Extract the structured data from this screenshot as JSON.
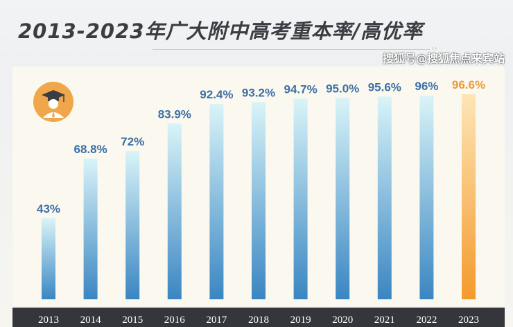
{
  "watermark": "搜狐号@搜狐焦点来宾站",
  "colors": {
    "bar_top": "#d6f3f8",
    "bar_bottom": "#3a86c2",
    "highlight_top": "#fde3b0",
    "highlight_bottom": "#f39a2c",
    "label": "#3c6fa6",
    "highlight_label": "#e99a3c"
  },
  "chart_data": {
    "type": "bar",
    "title": "2013-2023年广大附中高考重本率/高优率",
    "categories": [
      "2013",
      "2014",
      "2015",
      "2016",
      "2017",
      "2018",
      "2019",
      "2020",
      "2021",
      "2022",
      "2023"
    ],
    "values": [
      43,
      68.8,
      72,
      83.9,
      92.4,
      93.2,
      94.7,
      95.0,
      95.6,
      96,
      96.6
    ],
    "labels": [
      "43%",
      "68.8%",
      "72%",
      "83.9%",
      "92.4%",
      "93.2%",
      "94.7%",
      "95.0%",
      "95.6%",
      "96%",
      "96.6%"
    ],
    "highlight": "2023",
    "xlabel": "",
    "ylabel": "",
    "ylim": [
      0,
      100
    ],
    "grid": false
  }
}
